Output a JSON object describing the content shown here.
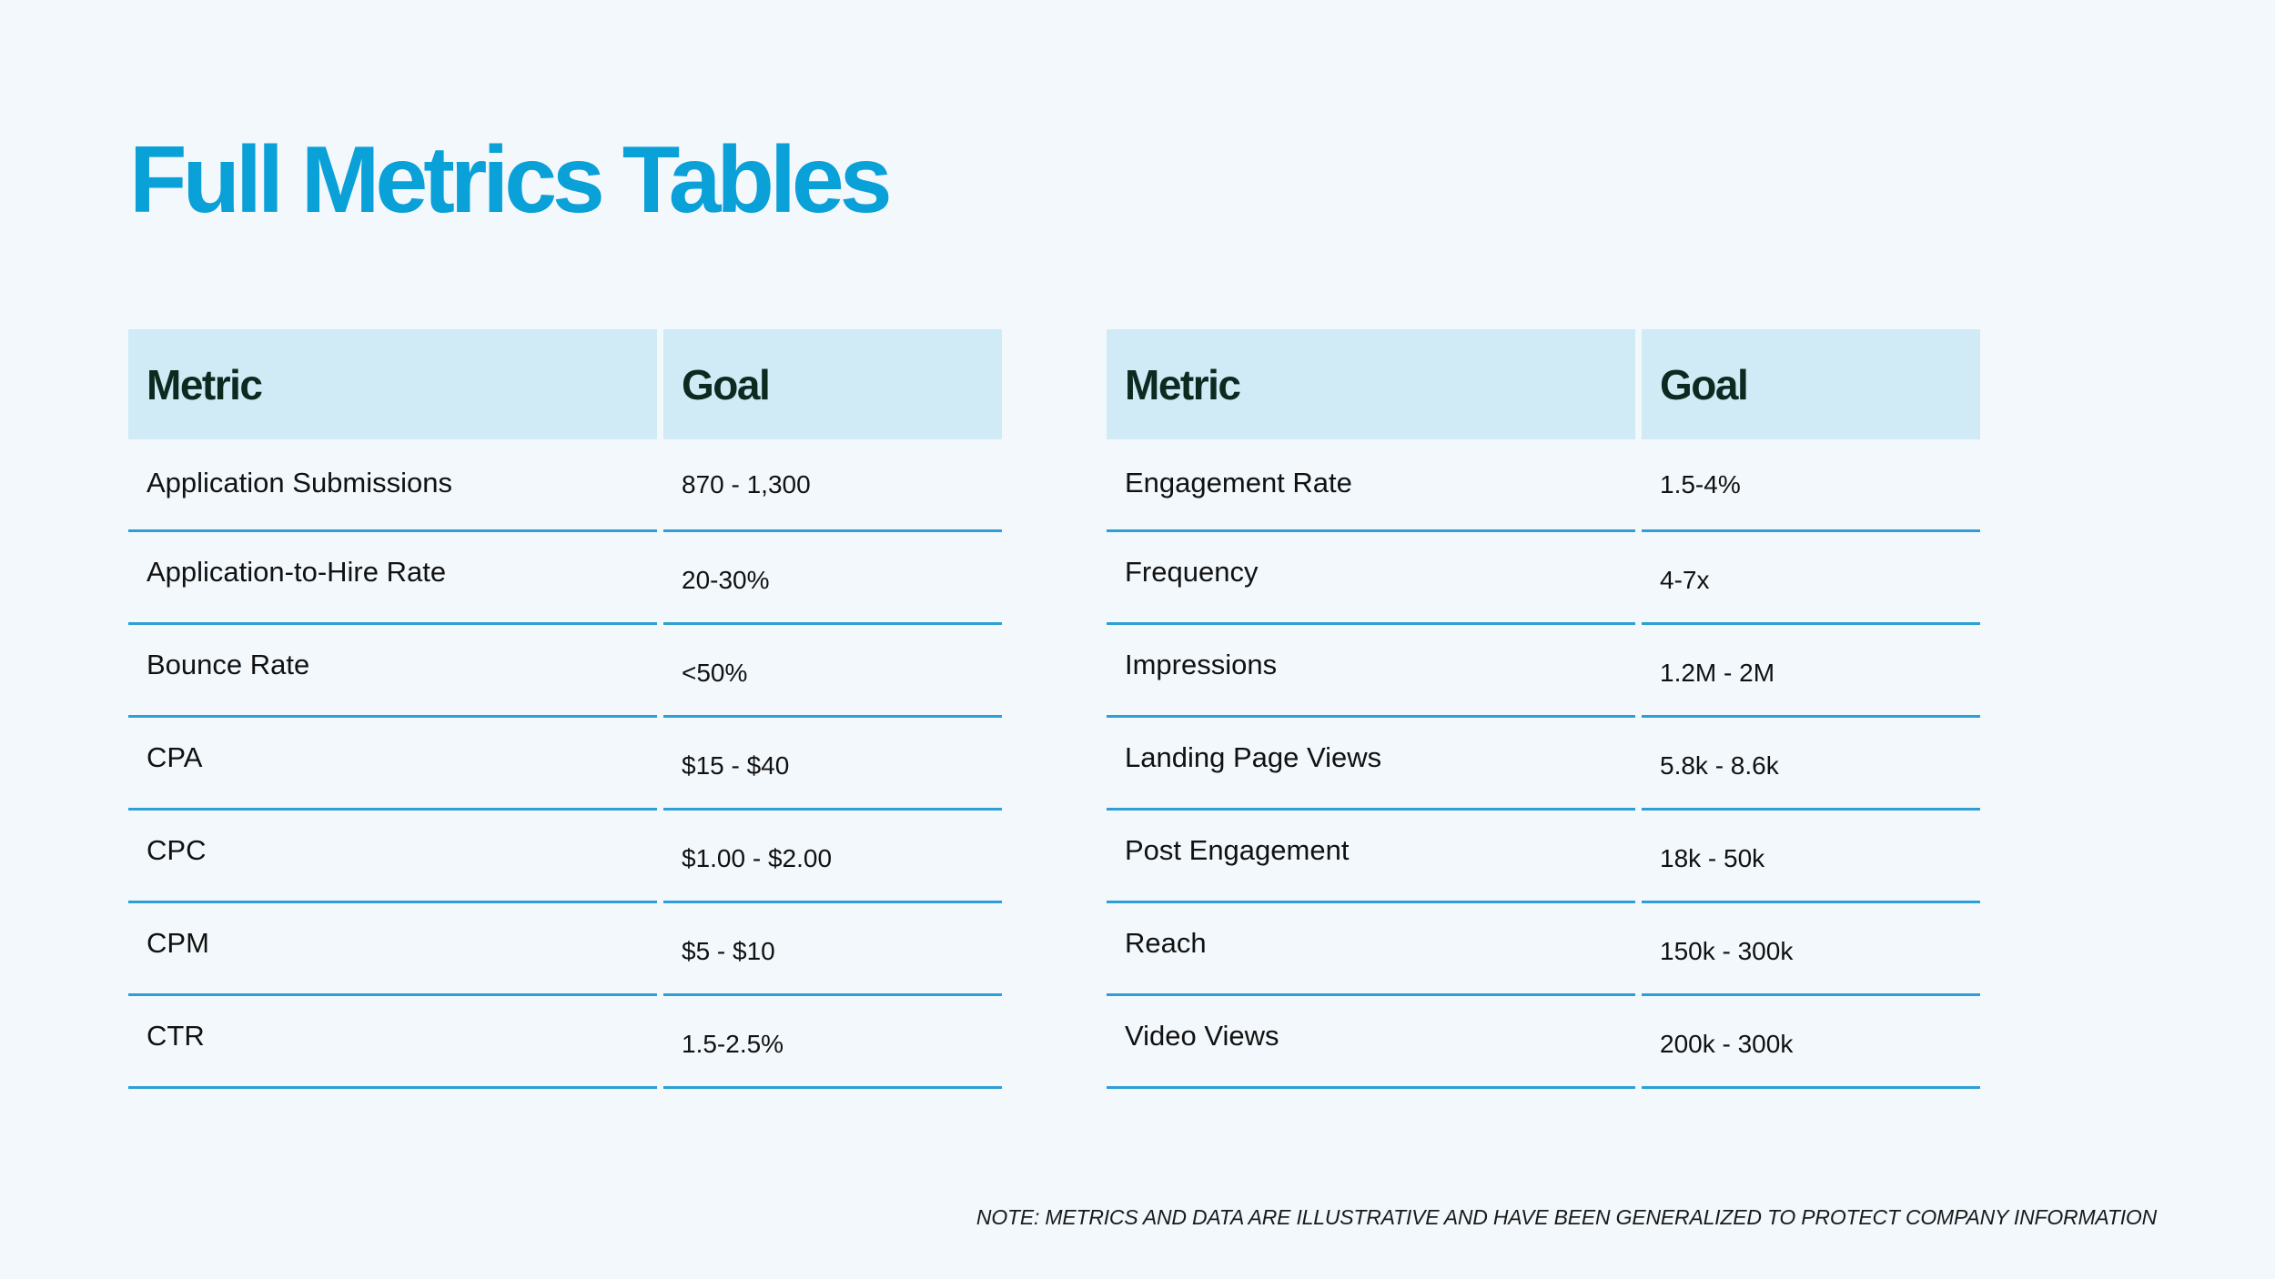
{
  "title": "Full Metrics Tables",
  "tables": [
    {
      "headers": [
        "Metric",
        "Goal"
      ],
      "rows": [
        {
          "metric": "Application Submissions",
          "goal": "870 - 1,300"
        },
        {
          "metric": "Application-to-Hire Rate",
          "goal": "20-30%"
        },
        {
          "metric": "Bounce Rate",
          "goal": "<50%"
        },
        {
          "metric": "CPA",
          "goal": "$15 - $40"
        },
        {
          "metric": "CPC",
          "goal": "$1.00 - $2.00"
        },
        {
          "metric": "CPM",
          "goal": "$5 - $10"
        },
        {
          "metric": "CTR",
          "goal": "1.5-2.5%"
        }
      ]
    },
    {
      "headers": [
        "Metric",
        "Goal"
      ],
      "rows": [
        {
          "metric": "Engagement Rate",
          "goal": "1.5-4%"
        },
        {
          "metric": "Frequency",
          "goal": "4-7x"
        },
        {
          "metric": "Impressions",
          "goal": "1.2M - 2M"
        },
        {
          "metric": "Landing Page Views",
          "goal": "5.8k - 8.6k"
        },
        {
          "metric": "Post Engagement",
          "goal": "18k - 50k"
        },
        {
          "metric": "Reach",
          "goal": "150k - 300k"
        },
        {
          "metric": "Video Views",
          "goal": "200k - 300k"
        }
      ]
    }
  ],
  "note": "NOTE: METRICS AND DATA ARE ILLUSTRATIVE AND HAVE BEEN GENERALIZED TO PROTECT COMPANY INFORMATION",
  "colors": {
    "background": "#f2f8fc",
    "title": "#0aa0d8",
    "header_fill": "#d0eaf6",
    "header_text": "#0d2a20",
    "row_rule": "#2e9fd6"
  }
}
